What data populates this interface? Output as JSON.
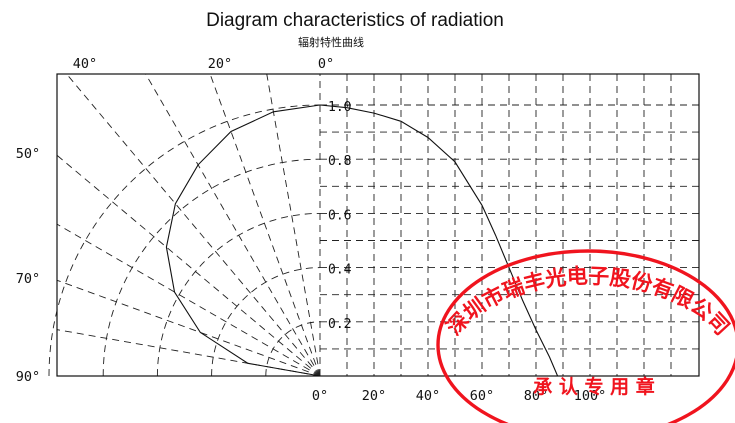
{
  "chart_data": {
    "type": "polar-line",
    "title": "Diagram characteristics of radiation",
    "subtitle": "辐射特性曲线",
    "angle_ticks_top": [
      "40°",
      "20°",
      "0°"
    ],
    "angle_ticks_left": [
      "50°",
      "70°",
      "90°"
    ],
    "angle_ticks_bottom": [
      "0°",
      "20°",
      "40°",
      "60°",
      "80°",
      "100°"
    ],
    "radial_ticks": [
      "1.0",
      "0.8",
      "0.6",
      "0.4",
      "0.2"
    ],
    "radial_values": [
      1.0,
      0.8,
      0.6,
      0.4,
      0.2
    ],
    "radial_lim": [
      0,
      1.0
    ],
    "angular_lim_deg": [
      0,
      90
    ],
    "bottom_axis_values": [
      0,
      20,
      40,
      60,
      80,
      100
    ],
    "bottom_axis_lim": [
      0,
      100
    ],
    "series": [
      {
        "angle_deg": [
          0,
          10,
          20,
          30,
          40,
          50,
          60,
          70,
          80,
          90
        ],
        "relative_intensity": [
          1.0,
          0.99,
          0.96,
          0.9,
          0.83,
          0.74,
          0.62,
          0.47,
          0.27,
          0.0
        ]
      },
      {
        "x": [
          0,
          10,
          20,
          30,
          40,
          50,
          60,
          65,
          70,
          75,
          80,
          85,
          88
        ],
        "y": [
          1.0,
          0.99,
          0.97,
          0.94,
          0.88,
          0.79,
          0.63,
          0.52,
          0.4,
          0.28,
          0.17,
          0.07,
          0.0
        ]
      }
    ],
    "grid": true
  },
  "stamp": {
    "company": "深圳市瑞丰光电子股份有限公司",
    "caption": "承 认 专 用 章",
    "color": "#f0141e"
  }
}
